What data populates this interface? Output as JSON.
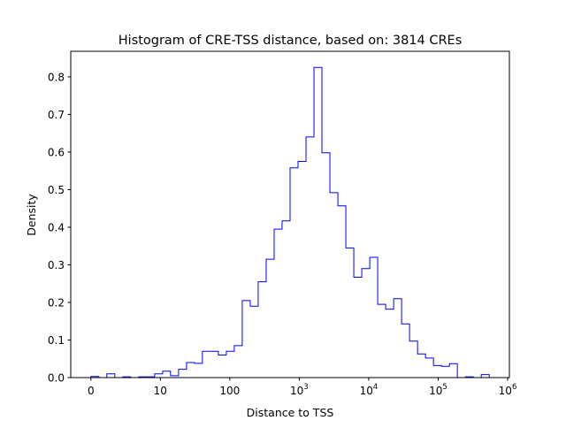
{
  "chart_data": {
    "type": "histogram-step",
    "title": "Histogram of CRE-TSS distance, based on: 3814 CREs",
    "xlabel": "Distance to TSS",
    "ylabel": "Density",
    "xscale": "symlog",
    "xlim": [
      -2.9,
      1060000
    ],
    "ylim": [
      0,
      0.868
    ],
    "grid": false,
    "line_color": "#0000ff",
    "x_ticks": [
      {
        "value": 0,
        "label": "0",
        "sup": ""
      },
      {
        "value": 10,
        "label": "10",
        "sup": ""
      },
      {
        "value": 100,
        "label": "100",
        "sup": ""
      },
      {
        "value": 1000,
        "label": "10",
        "sup": "3"
      },
      {
        "value": 10000,
        "label": "10",
        "sup": "4"
      },
      {
        "value": 100000,
        "label": "10",
        "sup": "5"
      },
      {
        "value": 1000000,
        "label": "10",
        "sup": "6"
      }
    ],
    "y_ticks": [
      0.0,
      0.1,
      0.2,
      0.3,
      0.4,
      0.5,
      0.6,
      0.7,
      0.8
    ],
    "y_tick_labels": [
      "0.0",
      "0.1",
      "0.2",
      "0.3",
      "0.4",
      "0.5",
      "0.6",
      "0.7",
      "0.8"
    ],
    "bin_edges": [
      0,
      1.15,
      2.29,
      3.44,
      4.59,
      5.74,
      6.88,
      8.03,
      9.18,
      10.8,
      14.0,
      18.3,
      23.8,
      31.0,
      40.3,
      52.5,
      68.4,
      89.1,
      116,
      151,
      197,
      256,
      334,
      435,
      566,
      737,
      960,
      1250,
      1629,
      2120,
      2761,
      3597,
      4682,
      6095,
      7943,
      10350,
      13460,
      17540,
      22860,
      29720,
      38730,
      50470,
      65610,
      85510,
      111400,
      145200,
      188800,
      246000,
      320600,
      416900,
      543000
    ],
    "densities": [
      0.003,
      0,
      0.01,
      0,
      0.002,
      0,
      0.002,
      0.002,
      0.01,
      0.017,
      0.005,
      0.022,
      0.04,
      0.038,
      0.07,
      0.07,
      0.06,
      0.07,
      0.085,
      0.205,
      0.19,
      0.255,
      0.315,
      0.395,
      0.417,
      0.558,
      0.575,
      0.64,
      0.825,
      0.598,
      0.492,
      0.457,
      0.345,
      0.267,
      0.29,
      0.32,
      0.195,
      0.182,
      0.21,
      0.143,
      0.097,
      0.063,
      0.052,
      0.032,
      0.03,
      0.037,
      0,
      0.002,
      0,
      0.008
    ]
  }
}
